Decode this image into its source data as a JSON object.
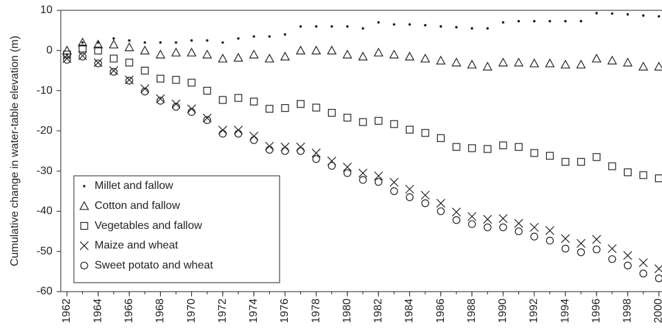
{
  "chart_data": {
    "type": "scatter",
    "y_label": "Cumulative change in water-table elevation (m)",
    "x": [
      1962,
      1963,
      1964,
      1965,
      1966,
      1967,
      1968,
      1969,
      1970,
      1971,
      1972,
      1973,
      1974,
      1975,
      1976,
      1977,
      1978,
      1979,
      1980,
      1981,
      1982,
      1983,
      1984,
      1985,
      1986,
      1987,
      1988,
      1989,
      1990,
      1991,
      1992,
      1993,
      1994,
      1995,
      1996,
      1997,
      1998,
      1999,
      2000
    ],
    "xlim": [
      1961.6,
      2000.2
    ],
    "xticks": [
      1962,
      1964,
      1966,
      1968,
      1970,
      1972,
      1974,
      1976,
      1978,
      1980,
      1982,
      1984,
      1986,
      1988,
      1990,
      1992,
      1994,
      1996,
      1998,
      2000
    ],
    "ylim": [
      -60,
      10
    ],
    "yticks": [
      10,
      0,
      -10,
      -20,
      -30,
      -40,
      -50,
      -60
    ],
    "legend": "bottom-left",
    "series": [
      {
        "name": "Millet and fallow",
        "marker": "dot",
        "color": "#222222",
        "values": [
          -1,
          2,
          2,
          3,
          2.5,
          2,
          2,
          2,
          2.5,
          2.5,
          2,
          3,
          3.5,
          3.5,
          4,
          6,
          6,
          6,
          6,
          5.5,
          7,
          6.5,
          6.5,
          6.3,
          6,
          5.8,
          5.5,
          5.5,
          7,
          7.3,
          7.3,
          7.3,
          7.3,
          7.3,
          9.3,
          9.2,
          9,
          8.7,
          8.5
        ]
      },
      {
        "name": "Cotton and fallow",
        "marker": "triangle",
        "color": "#222222",
        "values": [
          0,
          2,
          1.5,
          1.5,
          0.8,
          0,
          -1,
          -0.5,
          -0.5,
          -1,
          -2,
          -1.8,
          -1,
          -2,
          -1.5,
          0,
          0,
          0,
          -1,
          -1.5,
          -0.5,
          -1,
          -1.5,
          -2,
          -2.5,
          -3,
          -3.5,
          -4,
          -3,
          -3,
          -3.2,
          -3.2,
          -3.5,
          -3.5,
          -2,
          -2.5,
          -3,
          -4,
          -4
        ]
      },
      {
        "name": "Vegetables and fallow",
        "marker": "square",
        "color": "#222222",
        "values": [
          -1,
          0.5,
          0,
          -2,
          -3,
          -5,
          -7,
          -7.3,
          -8,
          -10,
          -12.3,
          -11.8,
          -12.7,
          -14.5,
          -14.3,
          -13.3,
          -14.2,
          -15.5,
          -16.7,
          -17.8,
          -17.5,
          -18.3,
          -19.7,
          -20.5,
          -21.8,
          -24,
          -24.3,
          -24.5,
          -23.6,
          -24,
          -25.5,
          -26.2,
          -27.7,
          -27.7,
          -26.5,
          -28.8,
          -30.3,
          -31,
          -31.8
        ]
      },
      {
        "name": "Maize and wheat",
        "marker": "cross",
        "color": "#222222",
        "values": [
          -2,
          -1.3,
          -3,
          -5,
          -7.3,
          -9.5,
          -12,
          -13.3,
          -14.5,
          -16.8,
          -19.8,
          -19.8,
          -21.3,
          -23.8,
          -24,
          -24,
          -25.5,
          -27.5,
          -29,
          -30.5,
          -31.2,
          -32.8,
          -34.5,
          -36,
          -38,
          -40.2,
          -41.3,
          -42,
          -41.8,
          -43,
          -44,
          -44.8,
          -46.8,
          -48,
          -47,
          -49.3,
          -51,
          -52.8,
          -54.3
        ]
      },
      {
        "name": "Sweet potato and wheat",
        "marker": "circle",
        "color": "#222222",
        "values": [
          -2.3,
          -1.5,
          -3.2,
          -5.3,
          -7.5,
          -10.2,
          -12.5,
          -14,
          -15.3,
          -17.3,
          -20.7,
          -20.7,
          -22.3,
          -24.7,
          -25,
          -25,
          -27,
          -28.7,
          -30.5,
          -32.2,
          -32.7,
          -35,
          -36.5,
          -38,
          -40,
          -42.2,
          -43.2,
          -44,
          -44,
          -45,
          -46.3,
          -47.3,
          -49.3,
          -50.2,
          -49.5,
          -51.9,
          -53.5,
          -55.5,
          -56.7
        ]
      }
    ]
  }
}
